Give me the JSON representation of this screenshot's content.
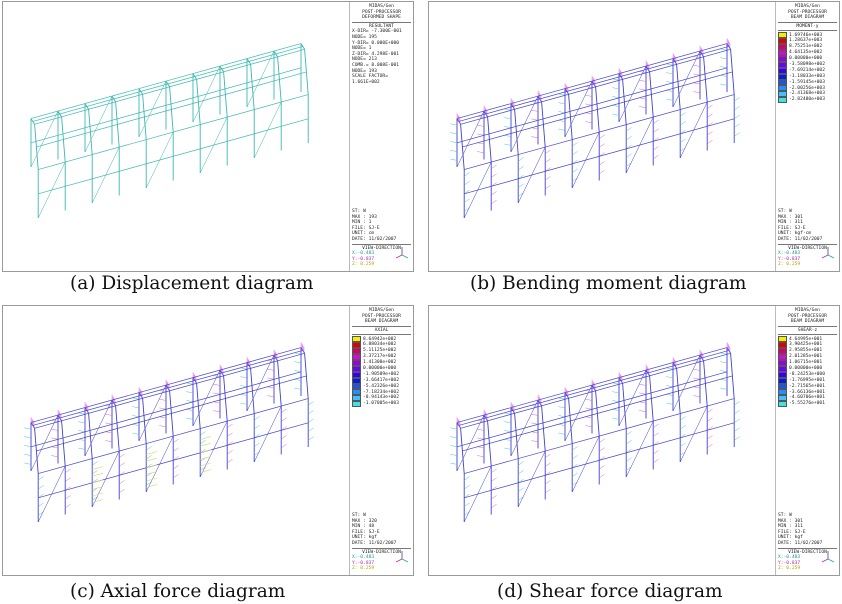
{
  "panels": [
    {
      "id": "a",
      "caption": "(a) Displacement diagram",
      "header": [
        "MIDAS/Gen",
        "POST-PROCESSOR",
        "DEFORMED SHAPE"
      ],
      "info": [
        "RESULTANT",
        "X-DIR= -7.300E-001",
        "NODE= 195",
        "Y-DIR= 0.000E+000",
        "NODE= 1",
        "Z-DIR= 4.298E-001",
        "NODE= 213",
        "COMB.= 8.008E-001",
        "NODE= 193",
        "SCALE FACTOR=",
        "1.661E+002"
      ],
      "footer": [
        "ST: W",
        "MAX : 193",
        "MIN : 1",
        "FILE: SJ-E",
        "UNIT: cm",
        "DATE: 11/02/2007"
      ],
      "legend": []
    },
    {
      "id": "b",
      "caption": "(b) Bending moment diagram",
      "header": [
        "MIDAS/Gen",
        "POST-PROCESSOR",
        "BEAM DIAGRAM"
      ],
      "info": [
        "MOMENT-y"
      ],
      "footer": [
        "ST: W",
        "MAX : 301",
        "MIN : 311",
        "FILE: SJ-E",
        "UNIT: kgf·cm",
        "DATE: 11/02/2007"
      ],
      "legend": [
        "1.69746e+003",
        "1.28637e+003",
        "8.75251e+002",
        "4.64135e+002",
        "0.00000e+000",
        "-3.58098e+002",
        "-7.69214e+002",
        "-1.18033e+003",
        "-1.59145e+003",
        "-2.00256e+003",
        "-2.41368e+003",
        "-2.82480e+003"
      ]
    },
    {
      "id": "c",
      "caption": "(c) Axial force diagram",
      "header": [
        "MIDAS/Gen",
        "POST-PROCESSOR",
        "BEAM DIAGRAM"
      ],
      "info": [
        "AXIAL"
      ],
      "footer": [
        "ST: W",
        "MAX : 320",
        "MIN : 48",
        "FILE: SJ-E",
        "UNIT: kgf",
        "DATE: 11/02/2007"
      ],
      "legend": [
        "8.64942e+002",
        "6.88034e+002",
        "5.11125e+002",
        "3.37217e+002",
        "1.41308e+002",
        "0.00000e+000",
        "-1.90509e+002",
        "-3.66417e+002",
        "-5.42326e+002",
        "-7.18234e+002",
        "-8.94143e+002",
        "-1.07005e+003"
      ]
    },
    {
      "id": "d",
      "caption": "(d) Shear force diagram",
      "header": [
        "MIDAS/Gen",
        "POST-PROCESSOR",
        "BEAM DIAGRAM"
      ],
      "info": [
        "SHEAR-z"
      ],
      "footer": [
        "ST: W",
        "MAX : 301",
        "MIN : 311",
        "FILE: SJ-E",
        "UNIT: kgf",
        "DATE: 11/02/2007"
      ],
      "legend": [
        "4.64995e+001",
        "3.90425e+001",
        "2.95855e+001",
        "2.01285e+001",
        "1.06715e+001",
        "0.00000e+000",
        "-8.24253e+000",
        "-1.76995e+001",
        "-2.71565e+001",
        "-3.66136e+001",
        "-4.60706e+001",
        "-5.55276e+001"
      ]
    }
  ],
  "view_direction": {
    "label": "VIEW-DIRECTION",
    "x": "X:-0.483",
    "y": "Y:-0.837",
    "z": "Z: 0.259"
  },
  "colors": {
    "legend": [
      "#f0f000",
      "#e00000",
      "#d4006a",
      "#e000e0",
      "#9b00e0",
      "#6a00ff",
      "#3200ff",
      "#0020e0",
      "#1a50ff",
      "#2090ff",
      "#40c0ff",
      "#40e0e8"
    ],
    "structure": "#3ab8b0",
    "member": "#4040d0",
    "diagram_pink": "#e060e0",
    "diagram_cyan": "#40c8e0"
  }
}
